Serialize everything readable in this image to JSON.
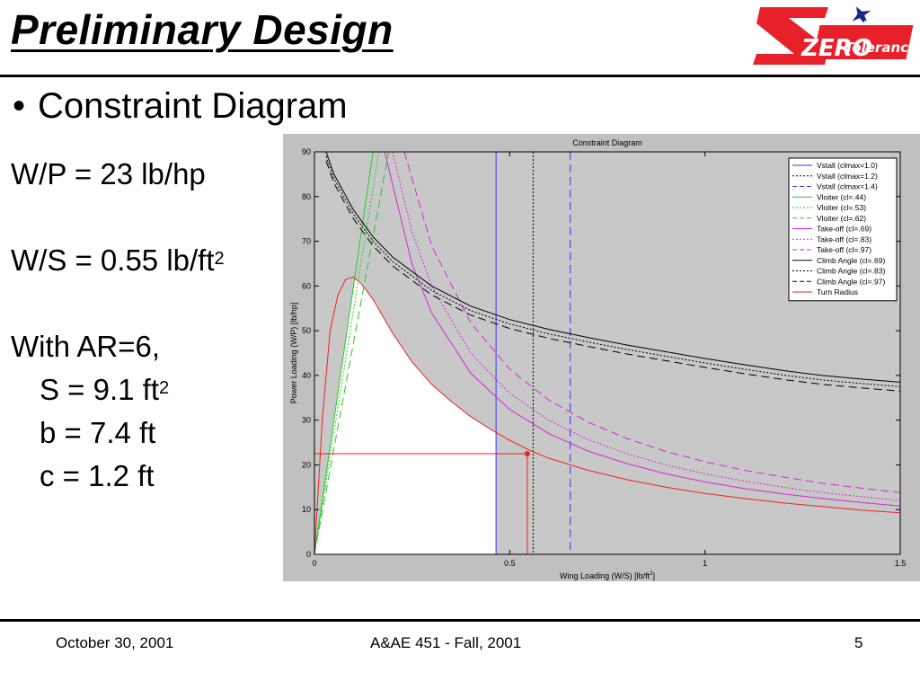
{
  "slide": {
    "title": "Preliminary Design",
    "bullet": "Constraint Diagram",
    "logo": {
      "big": "ZERO",
      "small": "Tolerance",
      "icon": "jet-icon",
      "color": "#e8202a"
    },
    "params": {
      "wp": "W/P = 23 lb/hp",
      "ws": "W/S = 0.55 lb/ft",
      "ws_sup": "2",
      "ar": "With AR=6,",
      "s": "S = 9.1 ft",
      "s_sup": "2",
      "b": "b = 7.4 ft",
      "c": "c = 1.2 ft"
    },
    "footer": {
      "date": "October 30, 2001",
      "course": "A&AE 451 - Fall, 2001",
      "page": "5"
    }
  },
  "chart_data": {
    "type": "line",
    "title": "Constraint Diagram",
    "xlabel": "Wing Loading (W/S) [lb/ft",
    "xlabel_sup": "2",
    "xlabel_end": "]",
    "ylabel": "Power Loading (W/P) [lb/hp]",
    "xlim": [
      0,
      1.5
    ],
    "ylim": [
      0,
      90
    ],
    "xticks": [
      0,
      0.5,
      1,
      1.5
    ],
    "xtick_labels": [
      "0",
      "0.5",
      "1",
      "1.5"
    ],
    "yticks": [
      0,
      10,
      20,
      30,
      40,
      50,
      60,
      70,
      80,
      90
    ],
    "ytick_labels": [
      "0",
      "10",
      "20",
      "30",
      "40",
      "50",
      "60",
      "70",
      "80",
      "90"
    ],
    "legend_position": "top-right",
    "plot_background": "#c8c8c8",
    "feasible_region_color": "#ffffff",
    "design_point": {
      "x": 0.545,
      "y": 22.5
    },
    "series": [
      {
        "name": "Vstall (clmax=1.0)",
        "kind": "vertical",
        "x": 0.465,
        "color": "#3333ff",
        "dash": "solid"
      },
      {
        "name": "Vstall (clmax=1.2)",
        "kind": "vertical",
        "x": 0.56,
        "color": "#000000",
        "dash": "dotted"
      },
      {
        "name": "Vstall (clmax=1.4)",
        "kind": "vertical",
        "x": 0.655,
        "color": "#3333ff",
        "dash": "dashed"
      },
      {
        "name": "Vloiter (cl=.44)",
        "x": [
          0,
          0.05,
          0.1,
          0.15
        ],
        "y": [
          0,
          30,
          60,
          90
        ],
        "color": "#22cc22",
        "dash": "solid"
      },
      {
        "name": "Vloiter (cl=.53)",
        "x": [
          0,
          0.055,
          0.11,
          0.165
        ],
        "y": [
          0,
          30,
          60,
          90
        ],
        "color": "#22cc22",
        "dash": "dotted"
      },
      {
        "name": "Vloiter (cl=.62)",
        "x": [
          0,
          0.0633,
          0.1267,
          0.19
        ],
        "y": [
          0,
          30,
          60,
          90
        ],
        "color": "#22cc22",
        "dash": "dashed"
      },
      {
        "name": "Take-off (cl=.69)",
        "x": [
          0.18,
          0.25,
          0.3,
          0.4,
          0.5,
          0.6,
          0.7,
          0.8,
          0.9,
          1.0,
          1.1,
          1.2,
          1.3,
          1.4,
          1.5
        ],
        "y": [
          90,
          64.8,
          54,
          40.5,
          32.4,
          27,
          23.1,
          20.3,
          18,
          16.2,
          14.7,
          13.5,
          12.5,
          11.6,
          10.8
        ],
        "color": "#dd22dd",
        "dash": "solid"
      },
      {
        "name": "Take-off (cl=.83)",
        "x": [
          0.2,
          0.25,
          0.3,
          0.4,
          0.5,
          0.6,
          0.7,
          0.8,
          0.9,
          1.0,
          1.1,
          1.2,
          1.3,
          1.4,
          1.5
        ],
        "y": [
          90,
          72,
          60,
          45,
          36,
          30,
          25.7,
          22.5,
          20,
          18,
          16.4,
          15,
          13.8,
          12.9,
          12
        ],
        "color": "#dd22dd",
        "dash": "dotted"
      },
      {
        "name": "Take-off (cl=.97)",
        "x": [
          0.23,
          0.3,
          0.4,
          0.5,
          0.6,
          0.7,
          0.8,
          0.9,
          1.0,
          1.1,
          1.2,
          1.3,
          1.4,
          1.5
        ],
        "y": [
          90,
          69,
          51.8,
          41.4,
          34.5,
          29.6,
          25.9,
          23,
          20.7,
          18.8,
          17.3,
          15.9,
          14.8,
          13.8
        ],
        "color": "#dd22dd",
        "dash": "dashed"
      },
      {
        "name": "Climb Angle (cl=.69)",
        "x": [
          0.03,
          0.05,
          0.1,
          0.15,
          0.2,
          0.3,
          0.4,
          0.5,
          0.6,
          0.7,
          0.8,
          0.9,
          1.0,
          1.1,
          1.2,
          1.3,
          1.4,
          1.5
        ],
        "y": [
          90,
          85,
          77,
          71,
          66.5,
          60,
          55.5,
          52.5,
          50.3,
          48.5,
          46.8,
          45.3,
          43.8,
          42.4,
          41.1,
          40,
          39.2,
          38.5
        ],
        "color": "#000000",
        "dash": "solid"
      },
      {
        "name": "Climb Angle (cl=.83)",
        "x": [
          0.03,
          0.05,
          0.1,
          0.15,
          0.2,
          0.3,
          0.4,
          0.5,
          0.6,
          0.7,
          0.8,
          0.9,
          1.0,
          1.1,
          1.2,
          1.3,
          1.4,
          1.5
        ],
        "y": [
          89,
          84,
          76,
          70,
          65.5,
          59,
          54.5,
          51.5,
          49.3,
          47.5,
          45.8,
          44.3,
          42.8,
          41.4,
          40.1,
          39,
          38.2,
          37.5
        ],
        "color": "#000000",
        "dash": "dotted"
      },
      {
        "name": "Climb Angle (cl=.97)",
        "x": [
          0.03,
          0.05,
          0.1,
          0.15,
          0.2,
          0.3,
          0.4,
          0.5,
          0.6,
          0.7,
          0.8,
          0.9,
          1.0,
          1.1,
          1.2,
          1.3,
          1.4,
          1.5
        ],
        "y": [
          88,
          83,
          75,
          69,
          64.5,
          58,
          53.5,
          50.5,
          48.3,
          46.5,
          44.8,
          43.3,
          41.8,
          40.4,
          39.1,
          38,
          37.2,
          36.5
        ],
        "color": "#000000",
        "dash": "dashed"
      },
      {
        "name": "Turn Radius",
        "x": [
          0,
          0.02,
          0.04,
          0.06,
          0.08,
          0.1,
          0.12,
          0.15,
          0.2,
          0.25,
          0.3,
          0.35,
          0.4,
          0.45,
          0.5,
          0.55,
          0.6,
          0.7,
          0.8,
          0.9,
          1.0,
          1.1,
          1.2,
          1.3,
          1.4,
          1.5
        ],
        "y": [
          0,
          30,
          50,
          58,
          61.5,
          62,
          60.5,
          57,
          49.5,
          43,
          38,
          34.2,
          30.8,
          28,
          25.5,
          23.3,
          21.5,
          18.8,
          16.7,
          15,
          13.6,
          12.5,
          11.5,
          10.7,
          9.9,
          9.3
        ],
        "color": "#ee2222",
        "dash": "solid"
      }
    ]
  }
}
